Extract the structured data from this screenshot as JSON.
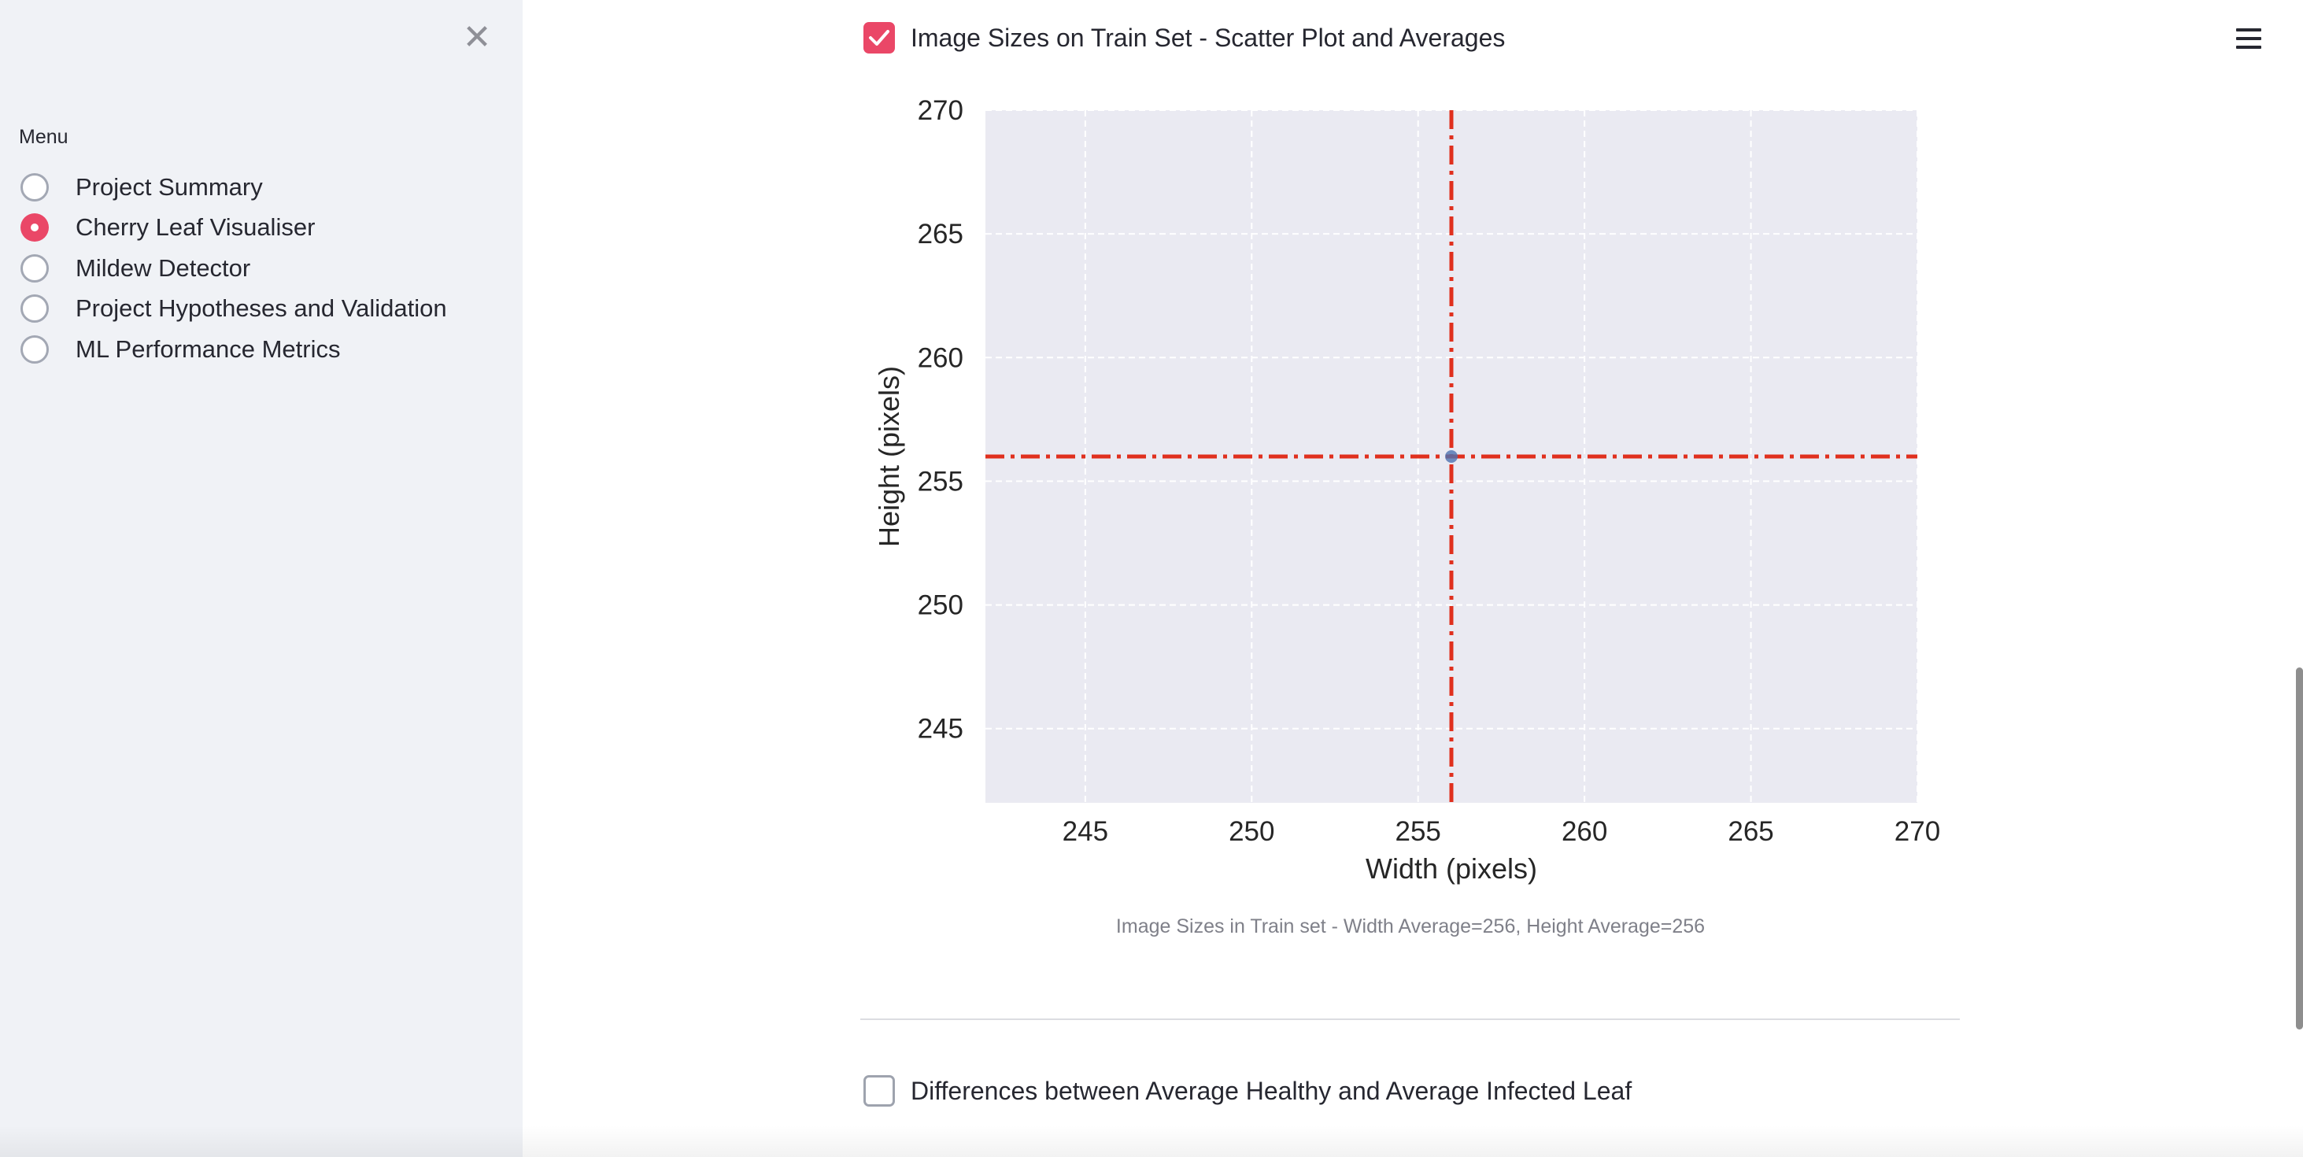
{
  "sidebar": {
    "close_icon": "close-icon",
    "close_glyph": "✕",
    "menu_label": "Menu",
    "items": [
      {
        "label": "Project Summary",
        "selected": false
      },
      {
        "label": "Cherry Leaf Visualiser",
        "selected": true
      },
      {
        "label": "Mildew Detector",
        "selected": false
      },
      {
        "label": "Project Hypotheses and Validation",
        "selected": false
      },
      {
        "label": "ML Performance Metrics",
        "selected": false
      }
    ]
  },
  "header": {
    "menu_icon": "hamburger-icon"
  },
  "main": {
    "section1": {
      "label": "Image Sizes on Train Set - Scatter Plot and Averages",
      "checked": true
    },
    "caption": "Image Sizes in Train set - Width Average=256, Height Average=256",
    "section2": {
      "label": "Differences between Average Healthy and Average Infected Leaf",
      "checked": false
    }
  },
  "colors": {
    "accent": "#ea4767",
    "plot_background": "#eaeaf2",
    "average_line": "#e0301e",
    "point": "#4c72b0"
  },
  "chart_data": {
    "type": "scatter",
    "title": "",
    "xlabel": "Width (pixels)",
    "ylabel": "Height (pixels)",
    "xlim": [
      242,
      270
    ],
    "ylim": [
      242,
      270
    ],
    "xticks": [
      245,
      250,
      255,
      260,
      265,
      270
    ],
    "yticks": [
      245,
      250,
      255,
      260,
      265,
      270
    ],
    "grid": true,
    "points": [
      {
        "x": 256,
        "y": 256
      }
    ],
    "average_lines": {
      "x": 256,
      "y": 256,
      "style": "dash-dot"
    }
  }
}
